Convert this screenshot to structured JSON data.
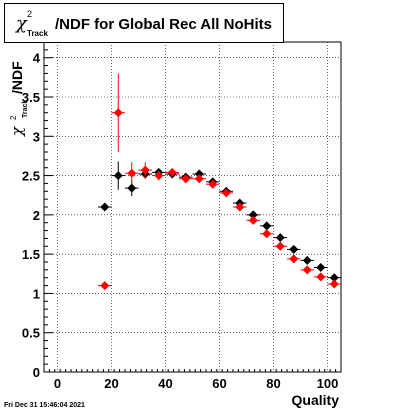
{
  "title": {
    "symbol": "χ",
    "superscript": "2",
    "subscript": "Track",
    "text": "/NDF for Global Rec All NoHits"
  },
  "footer": "Fri Dec 31 15:46:04 2021",
  "colors": {
    "series_black": "#000000",
    "series_red": "#ff0000",
    "grid": "#000000"
  },
  "chart_data": {
    "type": "scatter",
    "xlabel": "Quality",
    "ylabel": {
      "symbol": "χ",
      "superscript": "2",
      "subscript": "Track",
      "text": "/NDF"
    },
    "xlim": [
      -5,
      105
    ],
    "ylim": [
      0,
      4.2
    ],
    "xticks": [
      0,
      20,
      40,
      60,
      80,
      100
    ],
    "yticks": [
      0,
      0.5,
      1,
      1.5,
      2,
      2.5,
      3,
      3.5,
      4
    ],
    "xtick_labels": [
      "0",
      "20",
      "40",
      "60",
      "80",
      "100"
    ],
    "ytick_labels": [
      "0",
      "0.5",
      "1",
      "1.5",
      "2",
      "2.5",
      "3",
      "3.5",
      "4"
    ],
    "grid": true,
    "series": [
      {
        "color": "#000000",
        "x": [
          17.5,
          22.5,
          27.5,
          32.5,
          37.5,
          42.5,
          47.5,
          52.5,
          57.5,
          62.5,
          67.5,
          72.5,
          77.5,
          82.5,
          87.5,
          92.5,
          97.5,
          102.5
        ],
        "y": [
          2.1,
          2.5,
          2.34,
          2.52,
          2.54,
          2.52,
          2.48,
          2.52,
          2.42,
          2.3,
          2.15,
          2.0,
          1.86,
          1.71,
          1.56,
          1.42,
          1.33,
          1.2
        ],
        "yerr": [
          0.02,
          0.18,
          0.1,
          0.06,
          0.04,
          0.03,
          0.03,
          0.03,
          0.03,
          0.03,
          0.03,
          0.03,
          0.03,
          0.03,
          0.03,
          0.03,
          0.03,
          0.03
        ]
      },
      {
        "color": "#ff0000",
        "x": [
          17.5,
          22.5,
          27.5,
          32.5,
          37.5,
          42.5,
          47.5,
          52.5,
          57.5,
          62.5,
          67.5,
          72.5,
          77.5,
          82.5,
          87.5,
          92.5,
          97.5,
          102.5
        ],
        "y": [
          1.1,
          3.3,
          2.53,
          2.57,
          2.5,
          2.54,
          2.46,
          2.46,
          2.39,
          2.28,
          2.1,
          1.93,
          1.76,
          1.6,
          1.44,
          1.3,
          1.21,
          1.12
        ],
        "yerr": [
          0.02,
          0.5,
          0.14,
          0.1,
          0.06,
          0.04,
          0.03,
          0.03,
          0.03,
          0.03,
          0.03,
          0.03,
          0.03,
          0.03,
          0.03,
          0.03,
          0.03,
          0.03
        ]
      }
    ]
  }
}
